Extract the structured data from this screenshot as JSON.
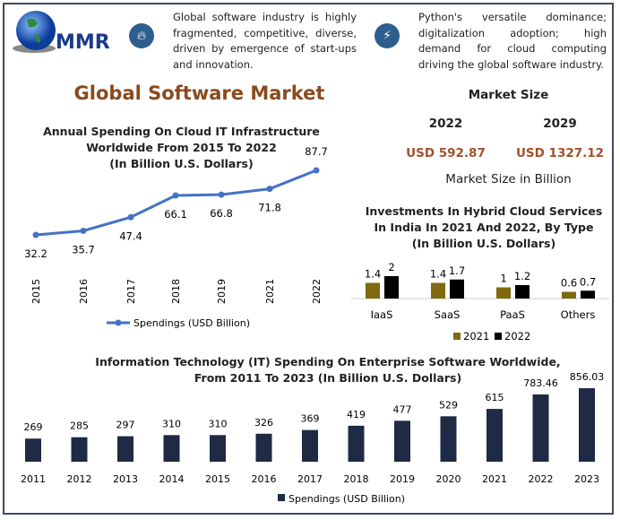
{
  "logo": {
    "text": "MMR"
  },
  "info": [
    {
      "icon": "fire-icon",
      "text": "Global software industry is highly fragmented, competitive, diverse, driven by emergence of start-ups and innovation."
    },
    {
      "icon": "lightning-icon",
      "text": "Python's versatile dominance; digitalization adoption; high demand for cloud computing driving the global software industry."
    }
  ],
  "title": "Global Software Market",
  "market": {
    "heading": "Market Size",
    "years": [
      "2022",
      "2029"
    ],
    "values": [
      "USD 592.87",
      "USD 1327.12"
    ],
    "caption": "Market Size in Billion"
  },
  "colors": {
    "title": "#8a4a1e",
    "line": "#4472c4",
    "olive": "#7f6a10",
    "black": "#000000",
    "navy": "#1f2a44"
  },
  "chart_data": [
    {
      "type": "line",
      "title": "Annual Spending On Cloud IT Infrastructure Worldwide From 2015 To 2022 (In Billion U.S. Dollars)",
      "title_lines": [
        "Annual Spending On Cloud IT Infrastructure",
        "Worldwide From 2015 To 2022",
        "(In Billion U.S. Dollars)"
      ],
      "categories": [
        "2015",
        "2016",
        "2017",
        "2018",
        "2019",
        "2021",
        "2022"
      ],
      "series": [
        {
          "name": "Spendings (USD Billion)",
          "values": [
            32.2,
            35.7,
            47.4,
            66.1,
            66.8,
            71.8,
            87.7
          ]
        }
      ],
      "labels": [
        "32.2",
        "35.7",
        "47.4",
        "66.1",
        "66.8",
        "71.8",
        "87.7"
      ],
      "legend": "bottom",
      "grid": false
    },
    {
      "type": "bar",
      "title": "Investments In Hybrid Cloud Services In India In 2021 And 2022, By Type (In Billion U.S. Dollars)",
      "title_lines": [
        "Investments In Hybrid Cloud Services",
        "In India In 2021 And 2022, By Type",
        "(In Billion U.S. Dollars)"
      ],
      "categories": [
        "IaaS",
        "SaaS",
        "PaaS",
        "Others"
      ],
      "series": [
        {
          "name": "2021",
          "values": [
            1.4,
            1.4,
            1,
            0.6
          ],
          "labels": [
            "1.4",
            "1.4",
            "1",
            "0.6"
          ]
        },
        {
          "name": "2022",
          "values": [
            2,
            1.7,
            1.2,
            0.7
          ],
          "labels": [
            "2",
            "1.7",
            "1.2",
            "0.7"
          ]
        }
      ],
      "legend": "bottom",
      "grid": false
    },
    {
      "type": "bar",
      "title": "Information Technology (IT) Spending On Enterprise Software Worldwide, From 2011 To 2023 (In Billion U.S. Dollars)",
      "title_lines": [
        "Information Technology (IT) Spending On Enterprise Software Worldwide,",
        "From 2011 To 2023 (In Billion U.S. Dollars)"
      ],
      "categories": [
        "2011",
        "2012",
        "2013",
        "2014",
        "2015",
        "2016",
        "2017",
        "2018",
        "2019",
        "2020",
        "2021",
        "2022",
        "2023"
      ],
      "series": [
        {
          "name": "Spendings (USD Billion)",
          "values": [
            269,
            285,
            297,
            310,
            310,
            326,
            369,
            419,
            477,
            529,
            615,
            783.46,
            856.03
          ]
        }
      ],
      "labels": [
        "269",
        "285",
        "297",
        "310",
        "310",
        "326",
        "369",
        "419",
        "477",
        "529",
        "615",
        "783.46",
        "856.03"
      ],
      "legend": "bottom",
      "grid": false
    }
  ]
}
